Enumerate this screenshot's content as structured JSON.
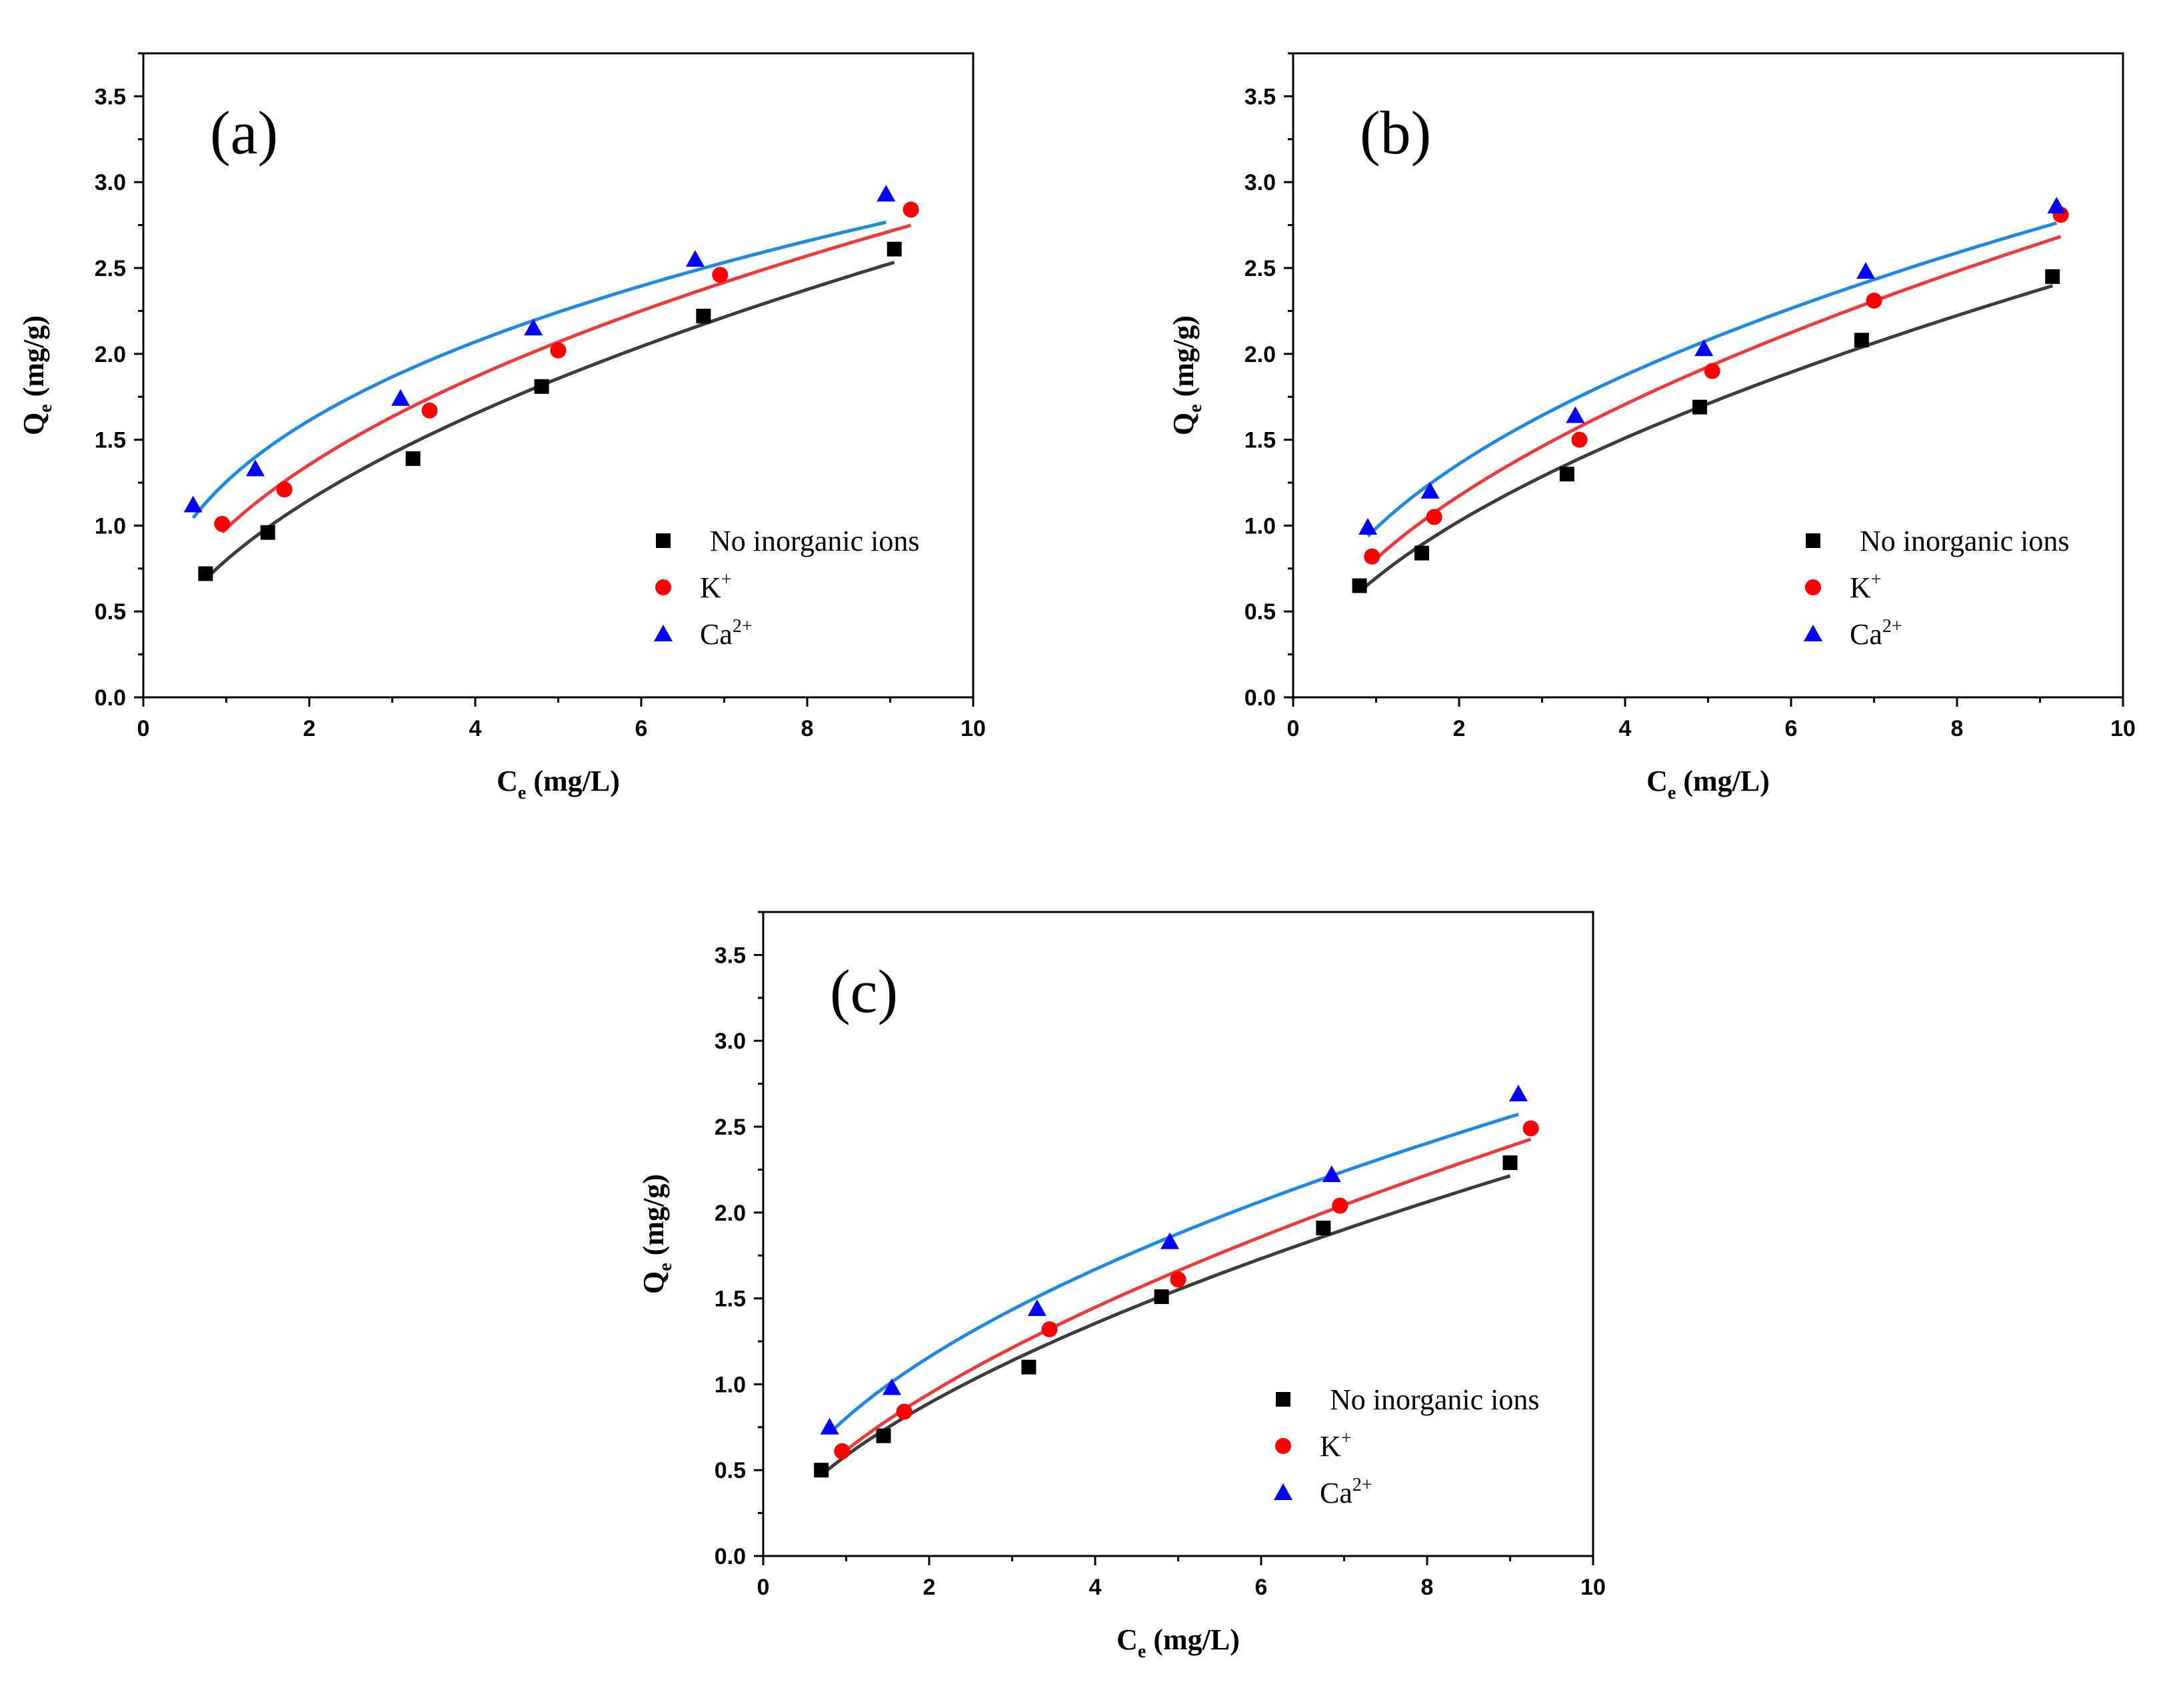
{
  "chart_data": [
    {
      "type": "scatter",
      "panel_label": "(a)",
      "xlabel": "C",
      "xlabel_sub": "e",
      "xlabel_unit": " (mg/L)",
      "ylabel": "Q",
      "ylabel_sub": "e",
      "ylabel_unit": " (mg/g)",
      "xlim": [
        0,
        10
      ],
      "ylim": [
        0,
        3.75
      ],
      "xticks": [
        "0",
        "2",
        "4",
        "6",
        "8",
        "10"
      ],
      "yticks": [
        "0.0",
        "0.5",
        "1.0",
        "1.5",
        "2.0",
        "2.5",
        "3.0",
        "3.5"
      ],
      "legend_position": "bottom-right",
      "series": [
        {
          "name": "No inorganic ions",
          "sup": "",
          "marker": "square",
          "color": "#000000",
          "line_color": "#3c3c3c",
          "x": [
            0.75,
            1.5,
            3.25,
            4.8,
            6.75,
            9.05
          ],
          "y": [
            0.72,
            0.96,
            1.39,
            1.81,
            2.22,
            2.61
          ]
        },
        {
          "name": "K",
          "sup": "+",
          "marker": "circle",
          "color": "#ff0000",
          "line_color": "#ef3a3a",
          "x": [
            0.95,
            1.7,
            3.45,
            5.0,
            6.95,
            9.25
          ],
          "y": [
            1.01,
            1.21,
            1.67,
            2.02,
            2.46,
            2.84
          ]
        },
        {
          "name": "Ca",
          "sup": "2+",
          "marker": "triangle",
          "color": "#0000ff",
          "line_color": "#1e88e5",
          "x": [
            0.6,
            1.35,
            3.1,
            4.7,
            6.65,
            8.95
          ],
          "y": [
            1.12,
            1.33,
            1.74,
            2.15,
            2.55,
            2.93
          ]
        }
      ]
    },
    {
      "type": "scatter",
      "panel_label": "(b)",
      "xlabel": "C",
      "xlabel_sub": "e",
      "xlabel_unit": " (mg/L)",
      "ylabel": "Q",
      "ylabel_sub": "e",
      "ylabel_unit": " (mg/g)",
      "xlim": [
        0,
        10
      ],
      "ylim": [
        0,
        3.75
      ],
      "xticks": [
        "0",
        "2",
        "4",
        "6",
        "8",
        "10"
      ],
      "yticks": [
        "0.0",
        "0.5",
        "1.0",
        "1.5",
        "2.0",
        "2.5",
        "3.0",
        "3.5"
      ],
      "legend_position": "bottom-right",
      "series": [
        {
          "name": "No inorganic ions",
          "sup": "",
          "marker": "square",
          "color": "#000000",
          "line_color": "#3c3c3c",
          "x": [
            0.8,
            1.55,
            3.3,
            4.9,
            6.85,
            9.15
          ],
          "y": [
            0.65,
            0.84,
            1.3,
            1.69,
            2.08,
            2.45
          ]
        },
        {
          "name": "K",
          "sup": "+",
          "marker": "circle",
          "color": "#ff0000",
          "line_color": "#ef3a3a",
          "x": [
            0.95,
            1.7,
            3.45,
            5.05,
            7.0,
            9.25
          ],
          "y": [
            0.82,
            1.05,
            1.5,
            1.9,
            2.31,
            2.81
          ]
        },
        {
          "name": "Ca",
          "sup": "2+",
          "marker": "triangle",
          "color": "#0000ff",
          "line_color": "#1e88e5",
          "x": [
            0.9,
            1.65,
            3.4,
            4.95,
            6.9,
            9.2
          ],
          "y": [
            0.99,
            1.2,
            1.64,
            2.03,
            2.48,
            2.86
          ]
        }
      ]
    },
    {
      "type": "scatter",
      "panel_label": "(c)",
      "xlabel": "C",
      "xlabel_sub": "e",
      "xlabel_unit": " (mg/L)",
      "ylabel": "Q",
      "ylabel_sub": "e",
      "ylabel_unit": " (mg/g)",
      "xlim": [
        0,
        10
      ],
      "ylim": [
        0,
        3.75
      ],
      "xticks": [
        "0",
        "2",
        "4",
        "6",
        "8",
        "10"
      ],
      "yticks": [
        "0.0",
        "0.5",
        "1.0",
        "1.5",
        "2.0",
        "2.5",
        "3.0",
        "3.5"
      ],
      "legend_position": "bottom-right",
      "series": [
        {
          "name": "No inorganic ions",
          "sup": "",
          "marker": "square",
          "color": "#000000",
          "line_color": "#3c3c3c",
          "x": [
            0.7,
            1.45,
            3.2,
            4.8,
            6.75,
            9.0
          ],
          "y": [
            0.5,
            0.7,
            1.1,
            1.51,
            1.91,
            2.29
          ]
        },
        {
          "name": "K",
          "sup": "+",
          "marker": "circle",
          "color": "#ff0000",
          "line_color": "#ef3a3a",
          "x": [
            0.95,
            1.7,
            3.45,
            5.0,
            6.95,
            9.25
          ],
          "y": [
            0.61,
            0.84,
            1.32,
            1.61,
            2.04,
            2.49
          ]
        },
        {
          "name": "Ca",
          "sup": "2+",
          "marker": "triangle",
          "color": "#0000ff",
          "line_color": "#1e88e5",
          "x": [
            0.8,
            1.55,
            3.3,
            4.9,
            6.85,
            9.1
          ],
          "y": [
            0.75,
            0.98,
            1.44,
            1.83,
            2.22,
            2.69
          ]
        }
      ]
    }
  ]
}
